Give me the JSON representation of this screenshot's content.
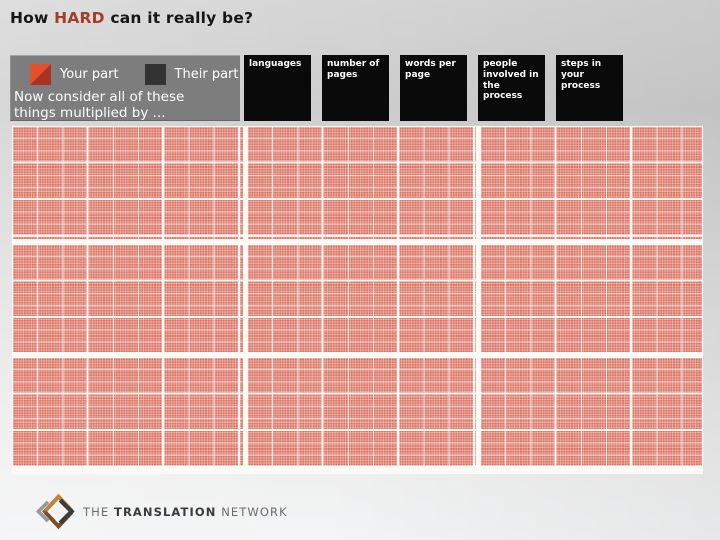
{
  "slide_title": {
    "prefix": "How ",
    "emphasis": "HARD",
    "suffix": " can it really be?",
    "emphasis_color": "#a33d28"
  },
  "legend": {
    "panel_color": "#7d7d7d",
    "your_part_label": "Your part",
    "their_part_label": "Their part",
    "caption": "Now consider all of these things multiplied by ...",
    "your_part_colors": {
      "top": "#e2512a",
      "bottom": "#a93222"
    },
    "their_part_color": "#333333"
  },
  "factors": [
    {
      "label": "languages"
    },
    {
      "label": "number of pages"
    },
    {
      "label": "words per page"
    },
    {
      "label": "people involved in the process"
    },
    {
      "label": "steps in your process"
    }
  ],
  "factor_box_color": "#0a0a0a",
  "grid": {
    "rows": 3,
    "cols": 3,
    "cell_color": "#dc7160"
  },
  "footer": {
    "the": "THE ",
    "brand": "TRANSLATION",
    "network": " NETWORK",
    "logo_colors": {
      "copper": "#c5823f",
      "copper_dark": "#7d4f27",
      "gray": "#9a9a9a",
      "gray_dark": "#666666",
      "dark": "#3c3c3c"
    }
  }
}
